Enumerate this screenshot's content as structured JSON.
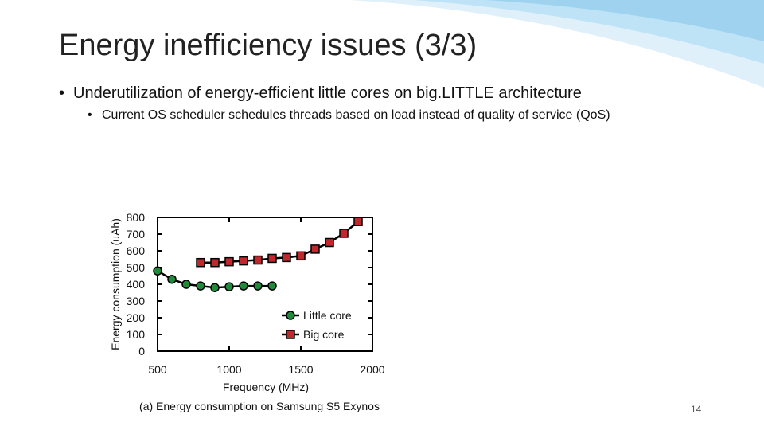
{
  "slide": {
    "title": "Energy inefficiency issues (3/3)",
    "bullet_level1": "Underutilization of energy-efficient little cores on big.LITTLE architecture",
    "bullet_level2": "Current OS scheduler schedules threads based on load instead of quality of service (QoS)",
    "slide_number": "14"
  },
  "colors": {
    "little_core": "#1f8a3a",
    "big_core": "#c0282d",
    "accent_blue": "#a9d6f0"
  },
  "chart_data": {
    "type": "line",
    "title": "",
    "caption": "(a) Energy consumption on Samsung S5 Exynos",
    "xlabel": "Frequency (MHz)",
    "ylabel": "Energy consumption (uAh)",
    "xlim": [
      500,
      2000
    ],
    "ylim": [
      0,
      800
    ],
    "xticks": [
      500,
      1000,
      1500,
      2000
    ],
    "yticks": [
      0,
      100,
      200,
      300,
      400,
      500,
      600,
      700,
      800
    ],
    "grid": false,
    "legend": "bottom-right",
    "series": [
      {
        "name": "Little core",
        "marker": "circle",
        "color": "#1f8a3a",
        "x": [
          500,
          600,
          700,
          800,
          900,
          1000,
          1100,
          1200,
          1300
        ],
        "y": [
          480,
          430,
          400,
          390,
          380,
          385,
          390,
          390,
          390
        ]
      },
      {
        "name": "Big core",
        "marker": "square",
        "color": "#c0282d",
        "x": [
          800,
          900,
          1000,
          1100,
          1200,
          1300,
          1400,
          1500,
          1600,
          1700,
          1800,
          1900
        ],
        "y": [
          530,
          530,
          535,
          540,
          545,
          555,
          560,
          570,
          610,
          650,
          705,
          775
        ]
      }
    ]
  }
}
